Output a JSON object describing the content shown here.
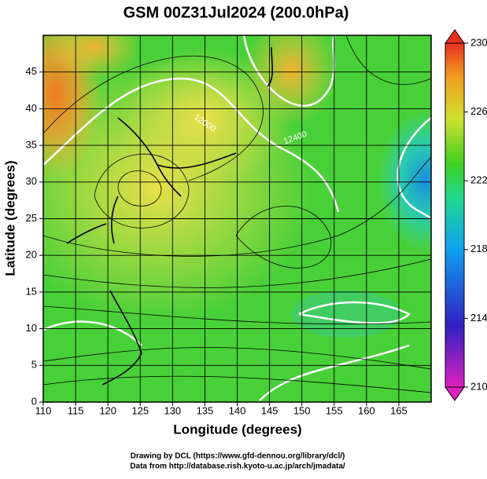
{
  "chart_data": {
    "type": "streamline-map",
    "title": "GSM 00Z31Jul2024 (200.0hPa)",
    "x_label": "Longitude (degrees)",
    "y_label": "Latitude  (degrees)",
    "xlim": [
      110,
      170
    ],
    "xticks": [
      110,
      115,
      120,
      125,
      130,
      135,
      140,
      145,
      150,
      155,
      160,
      165
    ],
    "ylim": [
      0,
      50
    ],
    "yticks": [
      0,
      5,
      10,
      15,
      20,
      25,
      30,
      35,
      40,
      45
    ],
    "grid": true,
    "colorbar": {
      "lim": [
        210,
        230
      ],
      "ticks": [
        210,
        214,
        218,
        222,
        226,
        230
      ]
    },
    "contour_labels": [
      "12000",
      "12400"
    ],
    "credits": [
      "Drawing by DCL (https://www.gfd-dennou.org/library/dcl/)",
      "Data from http://database.rish.kyoto-u.ac.jp/arch/jmadata/"
    ]
  }
}
